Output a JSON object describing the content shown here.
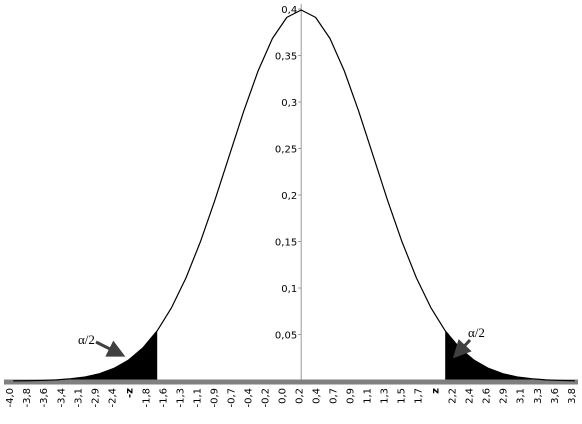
{
  "chart_data": {
    "type": "line",
    "categories": [
      "-4,0",
      "-3,8",
      "-3,6",
      "-3,4",
      "-3,1",
      "-2,9",
      "-2,4",
      "-z",
      "-1,8",
      "-1,6",
      "-1,3",
      "-1,1",
      "-0,9",
      "-0,7",
      "-0,4",
      "-0,2",
      "0,0",
      "0,2",
      "0,4",
      "0,7",
      "0,9",
      "1,1",
      "1,3",
      "1,5",
      "1,7",
      "z",
      "2,2",
      "2,4",
      "2,6",
      "2,9",
      "3,1",
      "3,3",
      "3,6",
      "3,8"
    ],
    "bold_categories": [
      7,
      25
    ],
    "series": [
      {
        "color": "#000000",
        "x": [
          -4.0,
          -3.8,
          -3.6,
          -3.4,
          -3.2,
          -3.0,
          -2.8,
          -2.6,
          -2.4,
          -2.2,
          -2.0,
          -1.8,
          -1.6,
          -1.4,
          -1.2,
          -1.0,
          -0.8,
          -0.6,
          -0.4,
          -0.2,
          0.0,
          0.2,
          0.4,
          0.6,
          0.8,
          1.0,
          1.2,
          1.4,
          1.6,
          1.8,
          2.0,
          2.2,
          2.4,
          2.6,
          2.8,
          3.0,
          3.2,
          3.4,
          3.6,
          3.8
        ],
        "values": [
          0.0001,
          0.0003,
          0.0006,
          0.0012,
          0.0024,
          0.0044,
          0.0079,
          0.0136,
          0.0224,
          0.0355,
          0.054,
          0.079,
          0.1109,
          0.1497,
          0.1942,
          0.242,
          0.2897,
          0.3332,
          0.3683,
          0.391,
          0.3989,
          0.391,
          0.3683,
          0.3332,
          0.2897,
          0.242,
          0.1942,
          0.1497,
          0.1109,
          0.079,
          0.054,
          0.0355,
          0.0224,
          0.0136,
          0.0079,
          0.0044,
          0.0024,
          0.0012,
          0.0006,
          0.0003
        ]
      }
    ],
    "shaded_tails": [
      -2.0,
      2.0
    ],
    "tail_color": "#000000",
    "xlim": [
      -4.1,
      3.9
    ],
    "ylim": [
      0,
      0.4
    ],
    "yticks": [
      {
        "value": 0.05,
        "label": "0,05"
      },
      {
        "value": 0.1,
        "label": "0,1"
      },
      {
        "value": 0.15,
        "label": "0,15"
      },
      {
        "value": 0.2,
        "label": "0,2"
      },
      {
        "value": 0.25,
        "label": "0,25"
      },
      {
        "value": 0.3,
        "label": "0,3"
      },
      {
        "value": 0.35,
        "label": "0,35"
      },
      {
        "value": 0.4,
        "label": "0,4"
      }
    ],
    "annotations": [
      "α/2",
      "α/2"
    ]
  }
}
